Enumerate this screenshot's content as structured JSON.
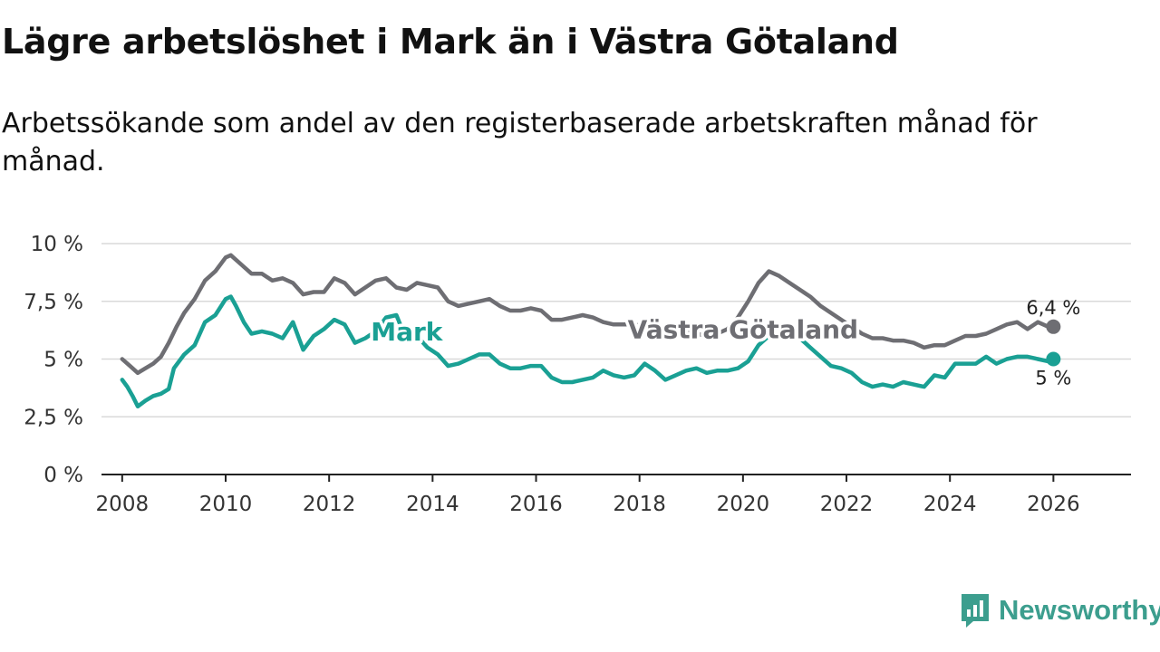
{
  "title": "Lägre arbetslöshet i Mark än i Västra Götaland",
  "subtitle": "Arbetssökande som andel av den registerbaserade arbetskraften månad för månad.",
  "brand": {
    "name": "Newsworthy",
    "color": "#3c9e8e",
    "icon": "newsworthy-logo-icon"
  },
  "chart_data": {
    "type": "line",
    "title": "Lägre arbetslöshet i Mark än i Västra Götaland",
    "subtitle": "Arbetssökande som andel av den registerbaserade arbetskraften månad för månad.",
    "xlabel": "",
    "ylabel": "",
    "xlim": [
      2007.6,
      2027.5
    ],
    "ylim": [
      0,
      10
    ],
    "grid": true,
    "x_ticks": [
      2008,
      2010,
      2012,
      2014,
      2016,
      2018,
      2020,
      2022,
      2024,
      2026
    ],
    "x_tick_labels": [
      "2008",
      "2010",
      "2012",
      "2014",
      "2016",
      "2018",
      "2020",
      "2022",
      "2024",
      "2026"
    ],
    "y_ticks": [
      0,
      2.5,
      5,
      7.5,
      10
    ],
    "y_tick_labels": [
      "0 %",
      "2,5 %",
      "5 %",
      "7,5 %",
      "10 %"
    ],
    "series": [
      {
        "name": "Västra Götaland",
        "color": "#6e6e73",
        "end_label": "6,4 %",
        "x": [
          2008.0,
          2008.15,
          2008.3,
          2008.45,
          2008.6,
          2008.75,
          2008.9,
          2009.05,
          2009.2,
          2009.4,
          2009.6,
          2009.8,
          2010.0,
          2010.1,
          2010.3,
          2010.5,
          2010.7,
          2010.9,
          2011.1,
          2011.3,
          2011.5,
          2011.7,
          2011.9,
          2012.1,
          2012.3,
          2012.5,
          2012.7,
          2012.9,
          2013.1,
          2013.3,
          2013.5,
          2013.7,
          2013.9,
          2014.1,
          2014.3,
          2014.5,
          2014.7,
          2014.9,
          2015.1,
          2015.3,
          2015.5,
          2015.7,
          2015.9,
          2016.1,
          2016.3,
          2016.5,
          2016.7,
          2016.9,
          2017.1,
          2017.3,
          2017.5,
          2017.7,
          2017.9,
          2018.1,
          2018.3,
          2018.5,
          2018.7,
          2018.9,
          2019.1,
          2019.3,
          2019.5,
          2019.7,
          2019.9,
          2020.1,
          2020.3,
          2020.5,
          2020.7,
          2020.9,
          2021.1,
          2021.3,
          2021.5,
          2021.7,
          2021.9,
          2022.1,
          2022.3,
          2022.5,
          2022.7,
          2022.9,
          2023.1,
          2023.3,
          2023.5,
          2023.7,
          2023.9,
          2024.1,
          2024.3,
          2024.5,
          2024.7,
          2024.9,
          2025.1,
          2025.3,
          2025.5,
          2025.7,
          2025.9,
          2026.0
        ],
        "y": [
          5.0,
          4.7,
          4.4,
          4.6,
          4.8,
          5.1,
          5.7,
          6.4,
          7.0,
          7.6,
          8.4,
          8.8,
          9.4,
          9.5,
          9.1,
          8.7,
          8.7,
          8.4,
          8.5,
          8.3,
          7.8,
          7.9,
          7.9,
          8.5,
          8.3,
          7.8,
          8.1,
          8.4,
          8.5,
          8.1,
          8.0,
          8.3,
          8.2,
          8.1,
          7.5,
          7.3,
          7.4,
          7.5,
          7.6,
          7.3,
          7.1,
          7.1,
          7.2,
          7.1,
          6.7,
          6.7,
          6.8,
          6.9,
          6.8,
          6.6,
          6.5,
          6.5,
          6.5,
          6.4,
          6.3,
          6.3,
          6.2,
          6.2,
          6.1,
          6.0,
          6.1,
          6.3,
          6.8,
          7.5,
          8.3,
          8.8,
          8.6,
          8.3,
          8.0,
          7.7,
          7.3,
          7.0,
          6.7,
          6.4,
          6.1,
          5.9,
          5.9,
          5.8,
          5.8,
          5.7,
          5.5,
          5.6,
          5.6,
          5.8,
          6.0,
          6.0,
          6.1,
          6.3,
          6.5,
          6.6,
          6.3,
          6.6,
          6.4,
          6.4
        ]
      },
      {
        "name": "Mark",
        "color": "#1aa094",
        "end_label": "5 %",
        "x": [
          2008.0,
          2008.1,
          2008.2,
          2008.3,
          2008.45,
          2008.6,
          2008.75,
          2008.9,
          2009.0,
          2009.2,
          2009.4,
          2009.6,
          2009.8,
          2010.0,
          2010.1,
          2010.2,
          2010.35,
          2010.5,
          2010.7,
          2010.9,
          2011.1,
          2011.3,
          2011.5,
          2011.7,
          2011.9,
          2012.1,
          2012.3,
          2012.5,
          2012.7,
          2012.9,
          2013.1,
          2013.3,
          2013.5,
          2013.7,
          2013.9,
          2014.1,
          2014.3,
          2014.5,
          2014.7,
          2014.9,
          2015.1,
          2015.3,
          2015.5,
          2015.7,
          2015.9,
          2016.1,
          2016.3,
          2016.5,
          2016.7,
          2016.9,
          2017.1,
          2017.3,
          2017.5,
          2017.7,
          2017.9,
          2018.1,
          2018.3,
          2018.5,
          2018.7,
          2018.9,
          2019.1,
          2019.3,
          2019.5,
          2019.7,
          2019.9,
          2020.1,
          2020.3,
          2020.5,
          2020.7,
          2020.9,
          2021.1,
          2021.3,
          2021.5,
          2021.7,
          2021.9,
          2022.1,
          2022.3,
          2022.5,
          2022.7,
          2022.9,
          2023.1,
          2023.3,
          2023.5,
          2023.7,
          2023.9,
          2024.1,
          2024.3,
          2024.5,
          2024.7,
          2024.9,
          2025.1,
          2025.3,
          2025.5,
          2025.7,
          2025.9,
          2026.0
        ],
        "y": [
          4.1,
          3.8,
          3.4,
          2.95,
          3.2,
          3.4,
          3.5,
          3.7,
          4.6,
          5.2,
          5.6,
          6.6,
          6.9,
          7.6,
          7.7,
          7.3,
          6.6,
          6.1,
          6.2,
          6.1,
          5.9,
          6.6,
          5.4,
          6.0,
          6.3,
          6.7,
          6.5,
          5.7,
          5.9,
          6.2,
          6.8,
          6.9,
          5.8,
          6.0,
          5.5,
          5.2,
          4.7,
          4.8,
          5.0,
          5.2,
          5.2,
          4.8,
          4.6,
          4.6,
          4.7,
          4.7,
          4.2,
          4.0,
          4.0,
          4.1,
          4.2,
          4.5,
          4.3,
          4.2,
          4.3,
          4.8,
          4.5,
          4.1,
          4.3,
          4.5,
          4.6,
          4.4,
          4.5,
          4.5,
          4.6,
          4.9,
          5.6,
          6.0,
          6.0,
          6.0,
          5.9,
          5.5,
          5.1,
          4.7,
          4.6,
          4.4,
          4.0,
          3.8,
          3.9,
          3.8,
          4.0,
          3.9,
          3.8,
          4.3,
          4.2,
          4.8,
          4.8,
          4.8,
          5.1,
          4.8,
          5.0,
          5.1,
          5.1,
          5.0,
          4.9,
          5.0
        ]
      }
    ]
  }
}
